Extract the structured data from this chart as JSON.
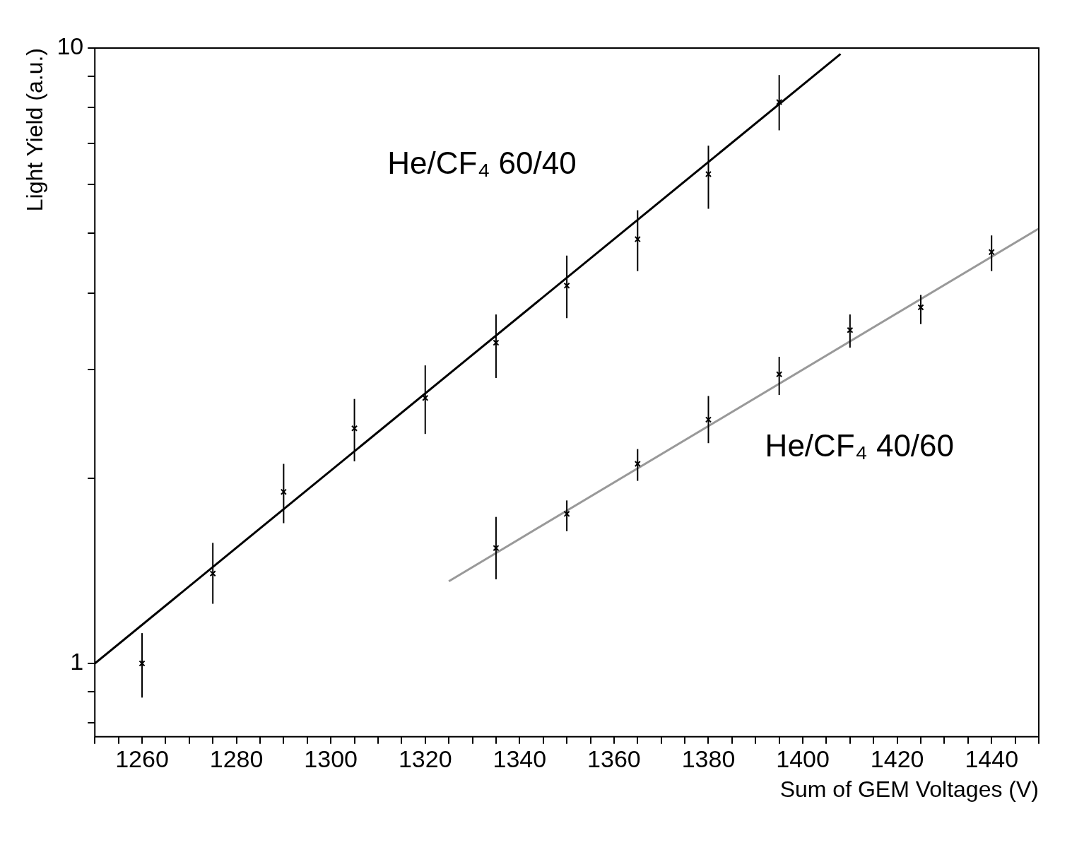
{
  "chart_data": {
    "type": "scatter",
    "xlabel": "Sum of GEM Voltages (V)",
    "ylabel": "Light Yield (a.u.)",
    "log": "y",
    "grid": false,
    "legend": false,
    "xlim": [
      1250,
      1450
    ],
    "ylim": [
      0.76,
      10
    ],
    "xticks": [
      {
        "value": 1250,
        "label": null
      },
      {
        "value": 1255,
        "label": null
      },
      1260,
      {
        "value": 1265,
        "label": null
      },
      {
        "value": 1270,
        "label": null
      },
      {
        "value": 1275,
        "label": null
      },
      1280,
      {
        "value": 1285,
        "label": null
      },
      {
        "value": 1290,
        "label": null
      },
      {
        "value": 1295,
        "label": null
      },
      1300,
      {
        "value": 1305,
        "label": null
      },
      {
        "value": 1310,
        "label": null
      },
      {
        "value": 1315,
        "label": null
      },
      1320,
      {
        "value": 1325,
        "label": null
      },
      {
        "value": 1330,
        "label": null
      },
      {
        "value": 1335,
        "label": null
      },
      1340,
      {
        "value": 1345,
        "label": null
      },
      {
        "value": 1350,
        "label": null
      },
      {
        "value": 1355,
        "label": null
      },
      1360,
      {
        "value": 1365,
        "label": null
      },
      {
        "value": 1370,
        "label": null
      },
      {
        "value": 1375,
        "label": null
      },
      1380,
      {
        "value": 1385,
        "label": null
      },
      {
        "value": 1390,
        "label": null
      },
      {
        "value": 1395,
        "label": null
      },
      1400,
      {
        "value": 1405,
        "label": null
      },
      {
        "value": 1410,
        "label": null
      },
      {
        "value": 1415,
        "label": null
      },
      1420,
      {
        "value": 1425,
        "label": null
      },
      {
        "value": 1430,
        "label": null
      },
      {
        "value": 1435,
        "label": null
      },
      1440,
      {
        "value": 1445,
        "label": null
      },
      {
        "value": 1450,
        "label": null
      }
    ],
    "yticks": [
      {
        "value": 0.8,
        "label": null
      },
      {
        "value": 0.9,
        "label": null
      },
      1,
      {
        "value": 2,
        "label": null
      },
      {
        "value": 3,
        "label": null
      },
      {
        "value": 4,
        "label": null
      },
      {
        "value": 5,
        "label": null
      },
      {
        "value": 6,
        "label": null
      },
      {
        "value": 7,
        "label": null
      },
      {
        "value": 8,
        "label": null
      },
      {
        "value": 9,
        "label": null
      },
      10
    ],
    "series": [
      {
        "type": "scatter",
        "name": "He/CF₄ 60/40",
        "color": "#000000",
        "marker": "cross",
        "x": [
          1260,
          1275,
          1290,
          1305,
          1320,
          1335,
          1350,
          1365,
          1380,
          1395
        ],
        "values": [
          1.0,
          1.4,
          1.9,
          2.41,
          2.7,
          3.32,
          4.11,
          4.89,
          6.24,
          8.17
        ],
        "errors": [
          [
            0.88,
            1.12
          ],
          [
            1.25,
            1.57
          ],
          [
            1.69,
            2.11
          ],
          [
            2.13,
            2.69
          ],
          [
            2.36,
            3.05
          ],
          [
            2.91,
            3.69
          ],
          [
            3.64,
            4.6
          ],
          [
            4.34,
            5.45
          ],
          [
            5.48,
            6.94
          ],
          [
            7.35,
            9.04
          ]
        ]
      },
      {
        "type": "scatter",
        "name": "He/CF₄ 40/60",
        "color": "#000000",
        "marker": "cross",
        "x": [
          1335,
          1350,
          1365,
          1380,
          1395,
          1410,
          1425,
          1440
        ],
        "values": [
          1.54,
          1.75,
          2.11,
          2.49,
          2.95,
          3.48,
          3.79,
          4.66
        ],
        "errors": [
          [
            1.37,
            1.73
          ],
          [
            1.64,
            1.84
          ],
          [
            1.98,
            2.23
          ],
          [
            2.28,
            2.72
          ],
          [
            2.73,
            3.15
          ],
          [
            3.26,
            3.69
          ],
          [
            3.56,
            3.97
          ],
          [
            4.34,
            4.96
          ]
        ]
      },
      {
        "type": "line",
        "color": "#000000",
        "line_style": "solid",
        "x": [
          1250,
          1408
        ],
        "values": [
          1.0,
          9.78
        ]
      },
      {
        "type": "line",
        "color": "#999999",
        "line_style": "solid",
        "x": [
          1325,
          1450
        ],
        "values": [
          1.36,
          5.09
        ]
      }
    ]
  }
}
